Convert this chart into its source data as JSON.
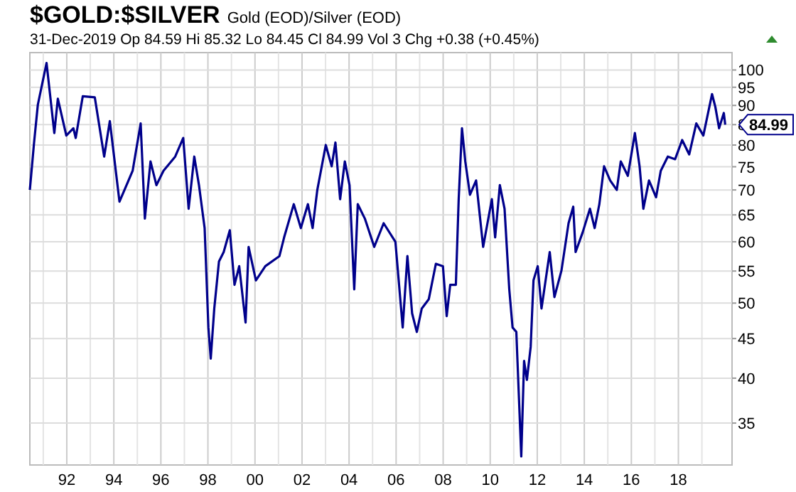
{
  "chart_data": {
    "type": "line",
    "title": "$GOLD:$SILVER",
    "subtitle": "Gold (EOD)/Silver (EOD)",
    "annotations": [
      "31-Dec-2019   Op 84.59  Hi 85.32  Lo 84.45  Cl 84.99  Vol 3  Chg +0.38 (+0.45%)",
      "84.99"
    ],
    "log": "y",
    "grid": true,
    "line_style": "solid",
    "marker": "none",
    "xlim": [
      1990.43,
      2020.28
    ],
    "xticks": [
      {
        "value": 1991,
        "label": null
      },
      {
        "value": 1992,
        "label": "92"
      },
      {
        "value": 1993,
        "label": null
      },
      {
        "value": 1994,
        "label": "94"
      },
      {
        "value": 1995,
        "label": null
      },
      {
        "value": 1996,
        "label": "96"
      },
      {
        "value": 1997,
        "label": null
      },
      {
        "value": 1998,
        "label": "98"
      },
      {
        "value": 1999,
        "label": null
      },
      {
        "value": 2000,
        "label": "00"
      },
      {
        "value": 2001,
        "label": null
      },
      {
        "value": 2002,
        "label": "02"
      },
      {
        "value": 2003,
        "label": null
      },
      {
        "value": 2004,
        "label": "04"
      },
      {
        "value": 2005,
        "label": null
      },
      {
        "value": 2006,
        "label": "06"
      },
      {
        "value": 2007,
        "label": null
      },
      {
        "value": 2008,
        "label": "08"
      },
      {
        "value": 2009,
        "label": null
      },
      {
        "value": 2010,
        "label": "10"
      },
      {
        "value": 2011,
        "label": null
      },
      {
        "value": 2012,
        "label": "12"
      },
      {
        "value": 2013,
        "label": null
      },
      {
        "value": 2014,
        "label": "14"
      },
      {
        "value": 2015,
        "label": null
      },
      {
        "value": 2016,
        "label": "16"
      },
      {
        "value": 2017,
        "label": null
      },
      {
        "value": 2018,
        "label": "18"
      },
      {
        "value": 2019,
        "label": null
      }
    ],
    "ylim": [
      30.9,
      105.3
    ],
    "yticks": [
      35,
      40,
      45,
      50,
      55,
      60,
      65,
      70,
      75,
      80,
      85,
      90,
      95,
      100
    ],
    "series": [
      {
        "color": "#00008b",
        "x": [
          1990.43,
          1990.61,
          1990.77,
          1991.14,
          1991.47,
          1991.62,
          1991.98,
          1992.28,
          1992.38,
          1992.68,
          1993.19,
          1993.59,
          1993.83,
          1994.24,
          1994.8,
          1995.14,
          1995.32,
          1995.56,
          1995.81,
          1996.11,
          1996.61,
          1996.95,
          1997.18,
          1997.42,
          1997.62,
          1997.86,
          1998.02,
          1998.12,
          1998.27,
          1998.47,
          1998.67,
          1998.93,
          1999.13,
          1999.33,
          1999.6,
          1999.73,
          2000.04,
          2000.44,
          2001.04,
          2001.24,
          2001.65,
          2001.95,
          2002.25,
          2002.45,
          2002.65,
          2003.01,
          2003.26,
          2003.42,
          2003.62,
          2003.82,
          2004.02,
          2004.22,
          2004.37,
          2004.67,
          2005.07,
          2005.47,
          2005.97,
          2006.28,
          2006.48,
          2006.68,
          2006.88,
          2007.09,
          2007.39,
          2007.69,
          2007.99,
          2008.15,
          2008.3,
          2008.54,
          2008.66,
          2008.8,
          2008.94,
          2009.14,
          2009.4,
          2009.7,
          2010.07,
          2010.21,
          2010.41,
          2010.61,
          2010.81,
          2010.95,
          2011.11,
          2011.32,
          2011.44,
          2011.56,
          2011.72,
          2011.84,
          2012.02,
          2012.18,
          2012.53,
          2012.73,
          2013.03,
          2013.33,
          2013.53,
          2013.63,
          2013.93,
          2014.24,
          2014.44,
          2014.64,
          2014.84,
          2015.1,
          2015.38,
          2015.55,
          2015.85,
          2016.15,
          2016.35,
          2016.51,
          2016.75,
          2017.05,
          2017.25,
          2017.55,
          2017.86,
          2018.16,
          2018.46,
          2018.76,
          2019.06,
          2019.43,
          2019.57,
          2019.73,
          2019.93,
          2019.99
        ],
        "values": [
          70.0,
          80.6,
          90.2,
          102.1,
          82.9,
          91.8,
          82.3,
          84.1,
          81.7,
          92.5,
          92.2,
          77.3,
          85.9,
          67.6,
          74.1,
          85.3,
          64.3,
          76.2,
          71.0,
          74.1,
          77.3,
          81.7,
          66.2,
          77.3,
          71.0,
          62.5,
          46.5,
          42.4,
          49.2,
          56.6,
          58.2,
          62.1,
          52.8,
          55.8,
          47.2,
          59.1,
          53.5,
          55.8,
          57.5,
          60.8,
          67.1,
          62.5,
          67.1,
          62.5,
          70.0,
          80.0,
          75.1,
          80.6,
          68.1,
          76.2,
          71.0,
          52.1,
          67.1,
          64.3,
          59.1,
          63.4,
          60.0,
          46.5,
          57.5,
          48.5,
          45.9,
          49.2,
          50.6,
          56.2,
          55.8,
          48.1,
          52.8,
          52.8,
          68.1,
          84.1,
          76.2,
          69.0,
          72.0,
          59.1,
          68.1,
          60.8,
          71.0,
          66.2,
          52.1,
          46.5,
          45.9,
          31.7,
          42.1,
          39.8,
          43.9,
          53.5,
          55.8,
          49.2,
          58.2,
          50.9,
          55.1,
          63.4,
          66.6,
          58.2,
          61.7,
          66.2,
          62.5,
          67.1,
          75.1,
          72.0,
          70.0,
          76.2,
          73.0,
          82.9,
          75.1,
          66.2,
          72.0,
          68.5,
          74.1,
          77.3,
          76.7,
          81.2,
          77.8,
          85.3,
          82.3,
          93.1,
          89.6,
          84.1,
          88.0,
          84.99
        ]
      }
    ]
  }
}
